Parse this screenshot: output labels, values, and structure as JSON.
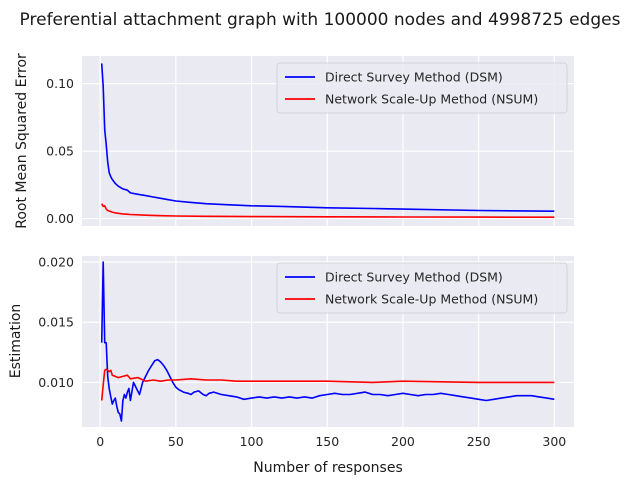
{
  "figure_title": "Preferential attachment graph with 100000 nodes and 4998725 edges",
  "colors": {
    "dsm": "#0000ff",
    "nsum": "#ff0000",
    "panel_bg": "#eaeaf2",
    "grid": "#ffffff"
  },
  "chart_data": [
    {
      "type": "line",
      "ylabel": "Root Mean Squared Error",
      "xlabel": "",
      "xlim": [
        -12,
        313
      ],
      "ylim": [
        -0.0055,
        0.1205
      ],
      "xticks": [
        0,
        50,
        100,
        150,
        200,
        250,
        300
      ],
      "yticks": [
        0.0,
        0.05,
        0.1
      ],
      "ytick_labels": [
        "0.00",
        "0.05",
        "0.10"
      ],
      "grid": true,
      "legend": "upper right",
      "series": [
        {
          "name": "Direct Survey Method (DSM)",
          "color": "#0000ff",
          "x": [
            1,
            2,
            3,
            4,
            5,
            6,
            7,
            8,
            10,
            12,
            15,
            18,
            20,
            25,
            30,
            35,
            40,
            45,
            50,
            60,
            70,
            80,
            100,
            120,
            150,
            180,
            200,
            250,
            300
          ],
          "y": [
            0.115,
            0.098,
            0.066,
            0.055,
            0.042,
            0.034,
            0.031,
            0.029,
            0.026,
            0.024,
            0.022,
            0.021,
            0.019,
            0.018,
            0.017,
            0.016,
            0.015,
            0.014,
            0.013,
            0.012,
            0.011,
            0.0105,
            0.0095,
            0.009,
            0.008,
            0.0075,
            0.007,
            0.006,
            0.0055
          ]
        },
        {
          "name": "Network Scale-Up Method (NSUM)",
          "color": "#ff0000",
          "x": [
            1,
            2,
            3,
            4,
            5,
            8,
            10,
            15,
            20,
            30,
            40,
            50,
            70,
            100,
            150,
            200,
            250,
            300
          ],
          "y": [
            0.011,
            0.009,
            0.0095,
            0.007,
            0.006,
            0.0048,
            0.0042,
            0.0035,
            0.003,
            0.0025,
            0.0021,
            0.0019,
            0.0017,
            0.0015,
            0.0013,
            0.0012,
            0.0011,
            0.001
          ]
        }
      ]
    },
    {
      "type": "line",
      "ylabel": "Estimation",
      "xlabel": "Number of responses",
      "xlim": [
        -12,
        313
      ],
      "ylim": [
        0.0063,
        0.0205
      ],
      "xticks": [
        0,
        50,
        100,
        150,
        200,
        250,
        300
      ],
      "xtick_labels": [
        "0",
        "50",
        "100",
        "150",
        "200",
        "250",
        "300"
      ],
      "yticks": [
        0.01,
        0.015,
        0.02
      ],
      "ytick_labels": [
        "0.010",
        "0.015",
        "0.020"
      ],
      "grid": true,
      "legend": "upper right",
      "series": [
        {
          "name": "Direct Survey Method (DSM)",
          "color": "#0000ff",
          "x": [
            1,
            2,
            3,
            4,
            5,
            6,
            7,
            8,
            9,
            10,
            11,
            12,
            13,
            14,
            15,
            16,
            17,
            18,
            19,
            20,
            22,
            24,
            26,
            28,
            30,
            32,
            34,
            36,
            38,
            40,
            42,
            44,
            46,
            48,
            50,
            52,
            55,
            58,
            60,
            62,
            65,
            68,
            70,
            72,
            75,
            80,
            85,
            90,
            95,
            100,
            105,
            110,
            115,
            120,
            125,
            130,
            135,
            140,
            145,
            150,
            155,
            160,
            165,
            170,
            175,
            180,
            185,
            190,
            195,
            200,
            205,
            210,
            215,
            220,
            225,
            230,
            235,
            240,
            245,
            250,
            255,
            260,
            265,
            270,
            275,
            280,
            285,
            290,
            295,
            300
          ],
          "y": [
            0.0133,
            0.02,
            0.0133,
            0.0133,
            0.0105,
            0.0095,
            0.0088,
            0.0082,
            0.0085,
            0.0087,
            0.008,
            0.0075,
            0.0074,
            0.0068,
            0.0085,
            0.009,
            0.0087,
            0.0092,
            0.0095,
            0.0085,
            0.01,
            0.0095,
            0.009,
            0.01,
            0.0105,
            0.011,
            0.0114,
            0.0118,
            0.0119,
            0.0117,
            0.0114,
            0.011,
            0.0105,
            0.01,
            0.0096,
            0.0094,
            0.0092,
            0.0091,
            0.009,
            0.0092,
            0.0093,
            0.009,
            0.0089,
            0.0091,
            0.0092,
            0.009,
            0.0089,
            0.0088,
            0.0086,
            0.0087,
            0.0088,
            0.0087,
            0.0088,
            0.0087,
            0.0088,
            0.0087,
            0.0088,
            0.0087,
            0.0089,
            0.009,
            0.0091,
            0.009,
            0.009,
            0.0091,
            0.0092,
            0.009,
            0.009,
            0.0089,
            0.009,
            0.0091,
            0.009,
            0.0089,
            0.009,
            0.009,
            0.0091,
            0.009,
            0.0089,
            0.0088,
            0.0087,
            0.0086,
            0.0085,
            0.0086,
            0.0087,
            0.0088,
            0.0089,
            0.0089,
            0.0089,
            0.0088,
            0.0087,
            0.0086
          ]
        },
        {
          "name": "Network Scale-Up Method (NSUM)",
          "color": "#ff0000",
          "x": [
            1,
            2,
            3,
            4,
            5,
            6,
            7,
            8,
            10,
            12,
            15,
            18,
            20,
            25,
            30,
            35,
            40,
            45,
            50,
            60,
            70,
            80,
            90,
            100,
            120,
            150,
            180,
            200,
            250,
            300
          ],
          "y": [
            0.0085,
            0.0098,
            0.011,
            0.0111,
            0.011,
            0.0109,
            0.011,
            0.0106,
            0.0105,
            0.0104,
            0.0105,
            0.0106,
            0.0103,
            0.0104,
            0.0101,
            0.0102,
            0.0101,
            0.0102,
            0.0102,
            0.0103,
            0.0102,
            0.0102,
            0.0101,
            0.0101,
            0.0101,
            0.0101,
            0.01,
            0.0101,
            0.01,
            0.01
          ]
        }
      ]
    }
  ]
}
